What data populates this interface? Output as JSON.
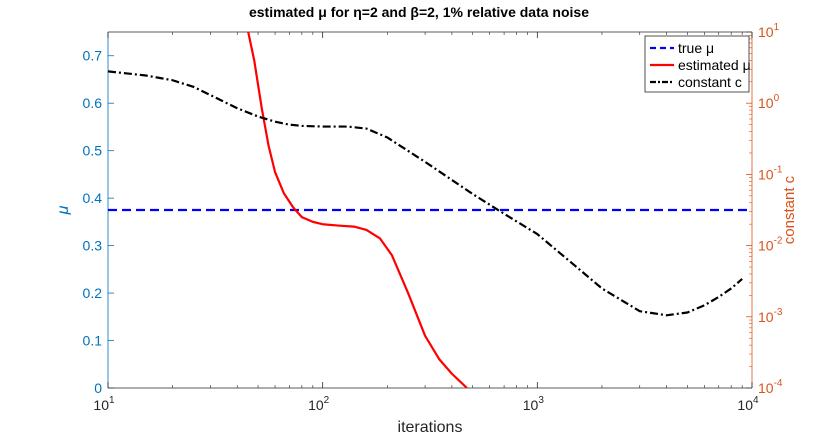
{
  "chart_data": {
    "type": "line",
    "title": "estimated μ for η=2 and β=2, 1% relative data noise",
    "xlabel": "iterations",
    "ylabel_left": "μ",
    "ylabel_right": "constant c",
    "x_scale": "log",
    "xlim": [
      10,
      10000
    ],
    "ylim_left": [
      0,
      0.75
    ],
    "ylim_right": [
      0.0001,
      10
    ],
    "y_right_scale": "log",
    "grid": false,
    "legend_position": "top-right",
    "x_ticks": [
      {
        "value": 10,
        "base": "10",
        "exp": "1"
      },
      {
        "value": 100,
        "base": "10",
        "exp": "2"
      },
      {
        "value": 1000,
        "base": "10",
        "exp": "3"
      },
      {
        "value": 10000,
        "base": "10",
        "exp": "4"
      }
    ],
    "y_left_ticks": [
      {
        "value": 0,
        "label": "0"
      },
      {
        "value": 0.1,
        "label": "0.1"
      },
      {
        "value": 0.2,
        "label": "0.2"
      },
      {
        "value": 0.3,
        "label": "0.3"
      },
      {
        "value": 0.4,
        "label": "0.4"
      },
      {
        "value": 0.5,
        "label": "0.5"
      },
      {
        "value": 0.6,
        "label": "0.6"
      },
      {
        "value": 0.7,
        "label": "0.7"
      }
    ],
    "y_right_ticks": [
      {
        "value": 10,
        "base": "10",
        "exp": "1"
      },
      {
        "value": 1,
        "base": "10",
        "exp": "0"
      },
      {
        "value": 0.1,
        "base": "10",
        "exp": "-1"
      },
      {
        "value": 0.01,
        "base": "10",
        "exp": "-2"
      },
      {
        "value": 0.001,
        "base": "10",
        "exp": "-3"
      },
      {
        "value": 0.0001,
        "base": "10",
        "exp": "-4"
      }
    ],
    "series": [
      {
        "name": "true μ",
        "axis": "left",
        "color": "#0000ff",
        "style": "dashed",
        "x": [
          10,
          10000
        ],
        "y": [
          0.375,
          0.375
        ]
      },
      {
        "name": "estimated μ",
        "axis": "left",
        "color": "#ff0000",
        "style": "solid",
        "x": [
          44,
          45,
          48,
          52,
          56,
          60,
          66,
          73,
          80,
          90,
          100,
          120,
          140,
          160,
          185,
          210,
          250,
          300,
          350,
          400,
          470
        ],
        "y": [
          0.8,
          0.75,
          0.69,
          0.59,
          0.51,
          0.455,
          0.41,
          0.38,
          0.36,
          0.35,
          0.345,
          0.342,
          0.34,
          0.333,
          0.315,
          0.28,
          0.2,
          0.11,
          0.06,
          0.03,
          0.0
        ]
      },
      {
        "name": "constant c",
        "axis": "right",
        "color": "#000000",
        "style": "dashdot",
        "x": [
          10,
          15,
          20,
          25,
          30,
          40,
          50,
          60,
          70,
          80,
          100,
          130,
          160,
          200,
          300,
          500,
          700,
          1000,
          1500,
          2000,
          3000,
          4000,
          5000,
          6000,
          7000,
          8000,
          9000
        ],
        "y": [
          2.8,
          2.45,
          2.1,
          1.7,
          1.3,
          0.85,
          0.65,
          0.55,
          0.5,
          0.48,
          0.47,
          0.47,
          0.44,
          0.33,
          0.15,
          0.053,
          0.028,
          0.0145,
          0.0052,
          0.0025,
          0.0012,
          0.00105,
          0.00115,
          0.00145,
          0.0019,
          0.0025,
          0.0034
        ]
      }
    ]
  }
}
